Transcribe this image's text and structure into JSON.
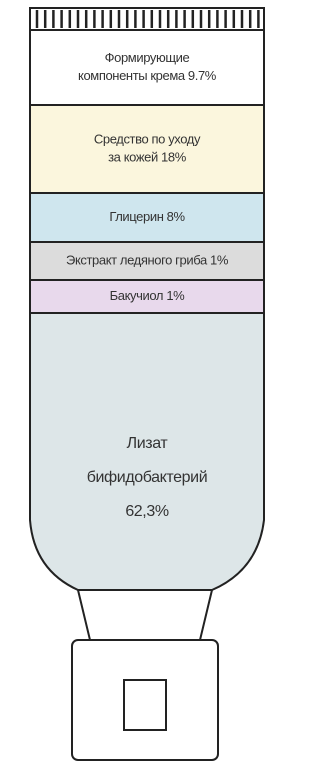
{
  "segments": [
    {
      "lines": [
        "Формирующие",
        "компоненты крема 9.7%"
      ],
      "color": "#ffffff"
    },
    {
      "lines": [
        "Средство по уходу",
        "за кожей 18%"
      ],
      "color": "#fbf6dd"
    },
    {
      "lines": [
        "Глицерин 8%"
      ],
      "color": "#cfe6ee"
    },
    {
      "lines": [
        "Экстракт ледяного гриба 1%"
      ],
      "color": "#dcdcdc"
    },
    {
      "lines": [
        "Бакучиол 1%"
      ],
      "color": "#e8d9ec"
    },
    {
      "lines": [
        "Лизат",
        "бифидобактерий",
        "62,3%"
      ],
      "color": "#dde6e8"
    }
  ]
}
